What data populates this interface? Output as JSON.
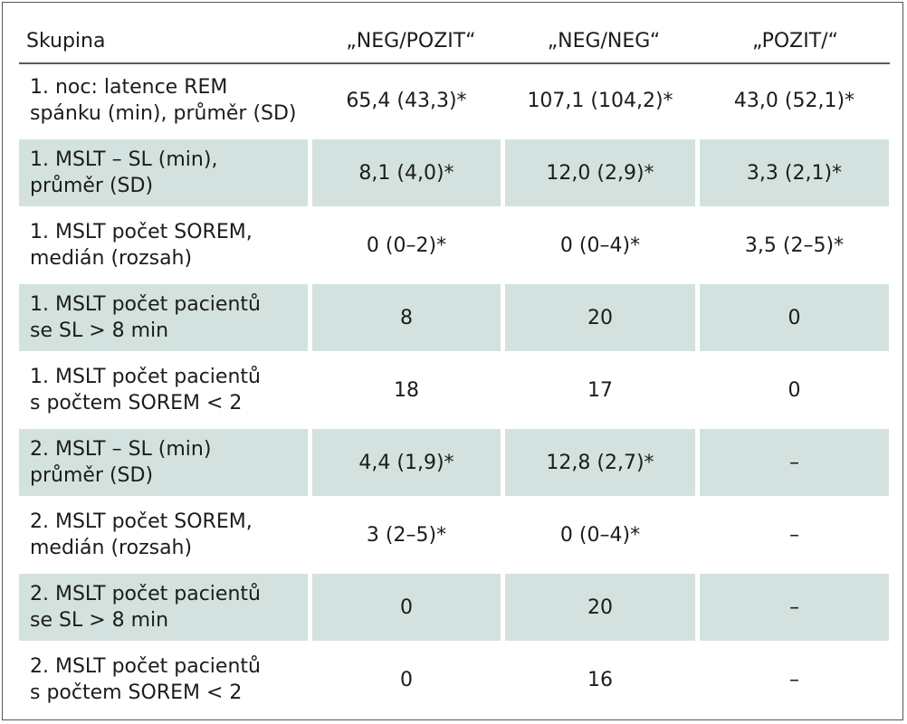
{
  "table": {
    "headers": [
      "Skupina",
      "„NEG/POZIT“",
      "„NEG/NEG“",
      "„POZIT/“"
    ],
    "rows": [
      {
        "label": "1. noc: latence REM\nspánku (min), průměr (SD)",
        "values": [
          "65,4 (43,3)*",
          "107,1 (104,2)*",
          "43,0 (52,1)*"
        ],
        "shaded": false
      },
      {
        "label": "1. MSLT – SL (min),\nprůměr (SD)",
        "values": [
          "8,1 (4,0)*",
          "12,0 (2,9)*",
          "3,3 (2,1)*"
        ],
        "shaded": true
      },
      {
        "label": "1. MSLT počet SOREM,\nmedián (rozsah)",
        "values": [
          "0 (0–2)*",
          "0 (0–4)*",
          "3,5 (2–5)*"
        ],
        "shaded": false
      },
      {
        "label": "1. MSLT počet pacientů\nse SL > 8 min",
        "values": [
          "8",
          "20",
          "0"
        ],
        "shaded": true
      },
      {
        "label": "1. MSLT počet pacientů\ns počtem SOREM < 2",
        "values": [
          "18",
          "17",
          "0"
        ],
        "shaded": false
      },
      {
        "label": "2. MSLT – SL (min)\nprůměr (SD)",
        "values": [
          "4,4 (1,9)*",
          "12,8 (2,7)*",
          "–"
        ],
        "shaded": true
      },
      {
        "label": "2. MSLT počet SOREM,\nmedián (rozsah)",
        "values": [
          "3 (2–5)*",
          "0 (0–4)*",
          "–"
        ],
        "shaded": false
      },
      {
        "label": "2. MSLT počet pacientů\nse SL > 8 min",
        "values": [
          "0",
          "20",
          "–"
        ],
        "shaded": true
      },
      {
        "label": "2. MSLT počet pacientů\ns počtem SOREM  < 2",
        "values": [
          "0",
          "16",
          "–"
        ],
        "shaded": false
      }
    ]
  },
  "colors": {
    "shade": "#d3e2de",
    "border": "#555555",
    "text": "#1c1c1c"
  }
}
